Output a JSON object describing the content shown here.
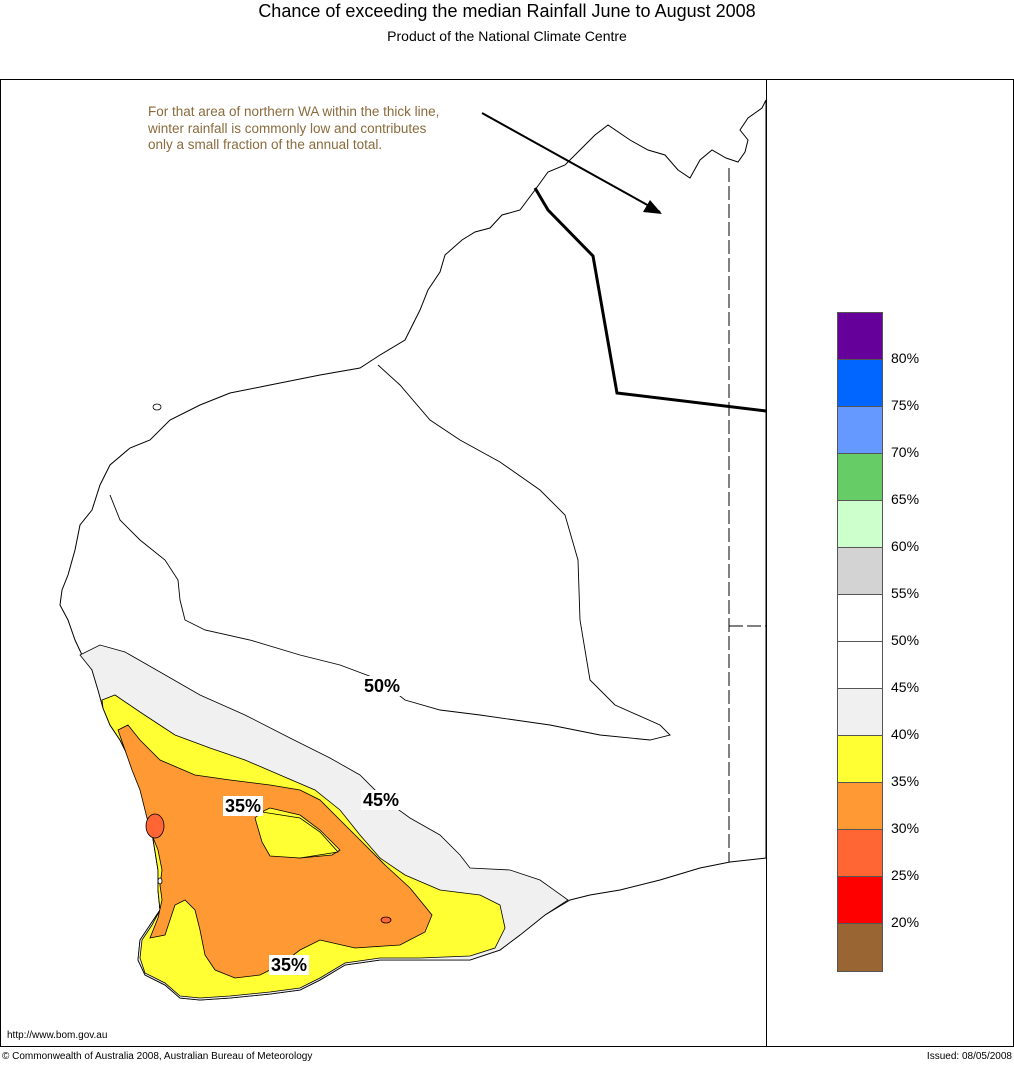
{
  "title": "Chance of exceeding the median Rainfall June to August 2008",
  "subtitle": "Product of the National Climate Centre",
  "annotation": {
    "lines": [
      "For that area of northern WA within the thick line,",
      "winter rainfall is commonly low and contributes",
      "only a small fraction of the annual total."
    ],
    "color": "#8b6b3d"
  },
  "map_labels": {
    "contour_50": "50%",
    "contour_45": "45%",
    "contour_35_upper": "35%",
    "contour_35_lower": "35%"
  },
  "legend": {
    "colors": [
      "#66009a",
      "#0066ff",
      "#6699ff",
      "#66cc66",
      "#ccffcc",
      "#d3d3d3",
      "#ffffff",
      "#ffffff",
      "#f0f0f0",
      "#ffff33",
      "#ff9933",
      "#ff6633",
      "#ff0000",
      "#996633"
    ],
    "labels": [
      "80%",
      "75%",
      "70%",
      "65%",
      "60%",
      "55%",
      "50%",
      "45%",
      "40%",
      "35%",
      "30%",
      "25%",
      "20%"
    ]
  },
  "footer": {
    "url": "http://www.bom.gov.au",
    "copyright": "© Commonwealth of Australia 2008, Australian Bureau of Meteorology",
    "issued": "Issued: 08/05/2008"
  }
}
